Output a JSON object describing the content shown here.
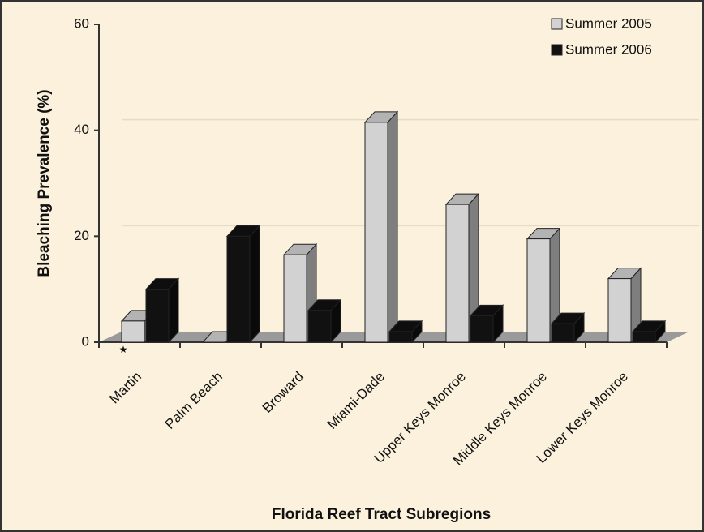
{
  "chart_data": {
    "type": "bar3d",
    "ylabel": "Bleaching Prevalence (%)",
    "xlabel": "Florida Reef Tract Subregions",
    "categories": [
      "Martin",
      "Palm Beach",
      "Broward",
      "Miami-Dade",
      "Upper Keys Monroe",
      "Middle Keys Monroe",
      "Lower Keys  Monroe"
    ],
    "series": [
      {
        "name": "Summer 2005",
        "color": "#d2d2d2",
        "values": [
          4,
          0,
          16.5,
          41.5,
          26,
          19.5,
          12
        ]
      },
      {
        "name": "Summer 2006",
        "color": "#111111",
        "values": [
          10,
          20,
          6,
          2,
          5,
          3.5,
          2
        ]
      }
    ],
    "annotation": "★",
    "ylim": [
      0,
      60
    ],
    "yticks": [
      0,
      20,
      40,
      60
    ],
    "grid": true,
    "legend": "top-right"
  }
}
